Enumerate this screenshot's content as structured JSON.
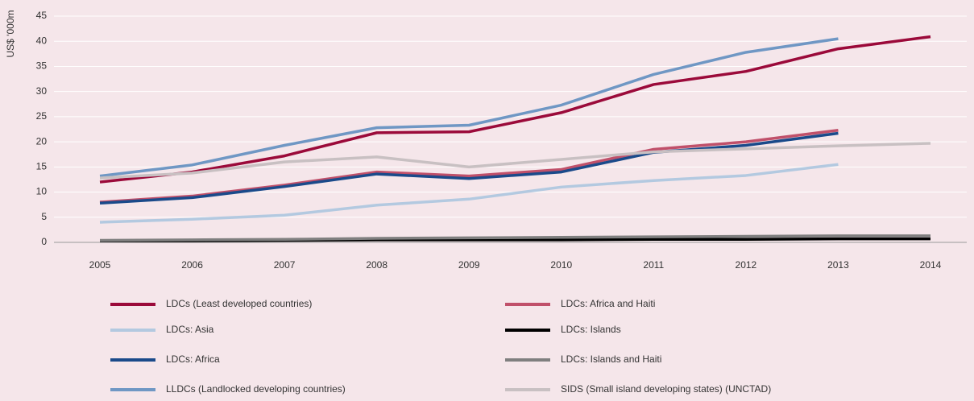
{
  "chart_data": {
    "type": "line",
    "y_label": "US$ '000m",
    "categories": [
      "2005",
      "2006",
      "2007",
      "2008",
      "2009",
      "2010",
      "2011",
      "2012",
      "2013",
      "2014"
    ],
    "ylim": [
      0,
      45
    ],
    "yticks": [
      0,
      5,
      10,
      15,
      20,
      25,
      30,
      35,
      40,
      45
    ],
    "grid": true,
    "series": [
      {
        "name": "LDCs (Least developed countries)",
        "color": "#9b0a3a",
        "values": [
          12,
          14,
          17.2,
          21.8,
          22,
          25.8,
          31.4,
          34,
          38.5,
          40.9
        ]
      },
      {
        "name": "LDCs: Africa and Haiti",
        "color": "#c0506a",
        "values": [
          8,
          9.2,
          11.4,
          14,
          13.2,
          14.5,
          18.5,
          20,
          22.3,
          null
        ]
      },
      {
        "name": "LDCs: Asia",
        "color": "#b3c9e0",
        "values": [
          4,
          4.6,
          5.4,
          7.4,
          8.6,
          11,
          12.3,
          13.3,
          15.5,
          null
        ]
      },
      {
        "name": "LDCs: Islands",
        "color": "#000000",
        "values": [
          0.3,
          0.3,
          0.4,
          0.5,
          0.5,
          0.5,
          0.6,
          0.6,
          0.7,
          0.7
        ]
      },
      {
        "name": "LDCs: Africa",
        "color": "#1a4a8a",
        "values": [
          7.8,
          8.9,
          11.1,
          13.6,
          12.7,
          14,
          17.9,
          19.3,
          21.7,
          null
        ]
      },
      {
        "name": "LDCs: Islands and Haiti",
        "color": "#7f7f7f",
        "values": [
          0.4,
          0.5,
          0.6,
          0.8,
          0.9,
          1,
          1.1,
          1.2,
          1.3,
          1.3
        ]
      },
      {
        "name": "LLDCs (Landlocked developing countries)",
        "color": "#6f97c4",
        "values": [
          13.2,
          15.4,
          19.3,
          22.8,
          23.3,
          27.3,
          33.4,
          37.8,
          40.5,
          null
        ]
      },
      {
        "name": "SIDS (Small island developing states) (UNCTAD)",
        "color": "#c8c0c2",
        "values": [
          12.8,
          13.8,
          16,
          17,
          15,
          16.5,
          18,
          18.6,
          19.2,
          19.7
        ]
      }
    ]
  }
}
